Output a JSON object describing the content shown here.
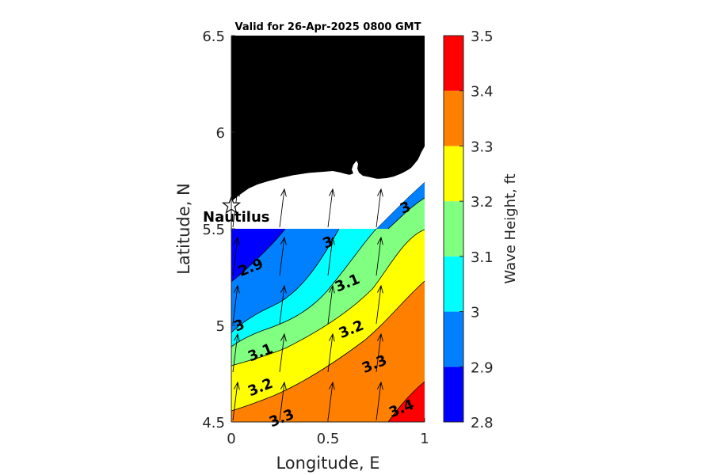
{
  "chart_data": {
    "type": "contour",
    "title": "Valid for 26-Apr-2025 0800 GMT",
    "xlabel": "Longitude, E",
    "ylabel": "Latitude, N",
    "xlim": [
      0,
      1
    ],
    "ylim": [
      4.5,
      6.5
    ],
    "xticks": [
      "0",
      "0.5",
      "1"
    ],
    "yticks": [
      "4.5",
      "5",
      "5.5",
      "6",
      "6.5"
    ],
    "colorbar": {
      "label": "Wave Height, ft",
      "levels": [
        2.8,
        2.9,
        3.0,
        3.1,
        3.2,
        3.3,
        3.4,
        3.5
      ],
      "ticks": [
        "2.8",
        "2.9",
        "3",
        "3.1",
        "3.2",
        "3.3",
        "3.4",
        "3.5"
      ],
      "colors": [
        "#0000ff",
        "#0080ff",
        "#00ffff",
        "#80ff80",
        "#ffff00",
        "#ff8000",
        "#ff0000"
      ]
    },
    "contour_labels": [
      {
        "text": "2.9",
        "x": 0.1,
        "y": 5.3
      },
      {
        "text": "3",
        "x": 0.04,
        "y": 5.0
      },
      {
        "text": "3",
        "x": 0.5,
        "y": 5.43
      },
      {
        "text": "3",
        "x": 0.9,
        "y": 5.61
      },
      {
        "text": "3.1",
        "x": 0.15,
        "y": 4.86
      },
      {
        "text": "3.1",
        "x": 0.6,
        "y": 5.22
      },
      {
        "text": "3.2",
        "x": 0.15,
        "y": 4.68
      },
      {
        "text": "3.2",
        "x": 0.62,
        "y": 4.98
      },
      {
        "text": "3.3",
        "x": 0.26,
        "y": 4.52
      },
      {
        "text": "3.3",
        "x": 0.74,
        "y": 4.8
      },
      {
        "text": "3.4",
        "x": 0.88,
        "y": 4.57
      }
    ],
    "station": {
      "name": "Nautilus",
      "x": 0.0,
      "y": 5.62
    },
    "wave_direction": "north-northeast",
    "land_color": "#000000",
    "grid": false
  }
}
